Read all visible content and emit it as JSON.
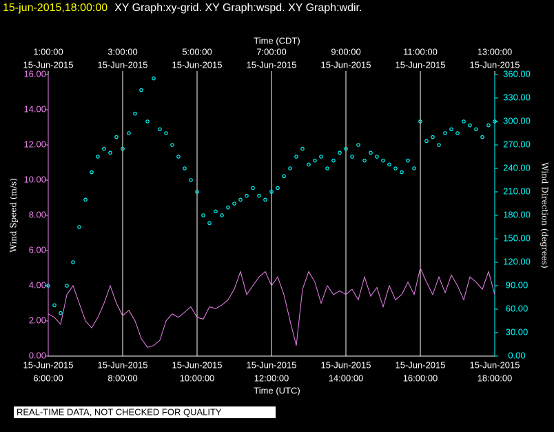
{
  "chart_data": {
    "type": "line",
    "timestamp": "15-jun-2015,18:00:00",
    "title": "XY Graph:xy-grid.  XY Graph:wspd.  XY Graph:wdir.",
    "note": "REAL-TIME DATA, NOT CHECKED FOR QUALITY",
    "xlabel": "Time (UTC)",
    "x2label": "Time (CDT)",
    "ylabel": "Wind Speed (m/s)",
    "y2label": "Wind Direction (degrees)",
    "grid": true,
    "x": [
      "2015-06-15 06:00",
      "2015-06-15 06:10",
      "2015-06-15 06:20",
      "2015-06-15 06:30",
      "2015-06-15 06:40",
      "2015-06-15 06:50",
      "2015-06-15 07:00",
      "2015-06-15 07:10",
      "2015-06-15 07:20",
      "2015-06-15 07:30",
      "2015-06-15 07:40",
      "2015-06-15 07:50",
      "2015-06-15 08:00",
      "2015-06-15 08:10",
      "2015-06-15 08:20",
      "2015-06-15 08:30",
      "2015-06-15 08:40",
      "2015-06-15 08:50",
      "2015-06-15 09:00",
      "2015-06-15 09:10",
      "2015-06-15 09:20",
      "2015-06-15 09:30",
      "2015-06-15 09:40",
      "2015-06-15 09:50",
      "2015-06-15 10:00",
      "2015-06-15 10:10",
      "2015-06-15 10:20",
      "2015-06-15 10:30",
      "2015-06-15 10:40",
      "2015-06-15 10:50",
      "2015-06-15 11:00",
      "2015-06-15 11:10",
      "2015-06-15 11:20",
      "2015-06-15 11:30",
      "2015-06-15 11:40",
      "2015-06-15 11:50",
      "2015-06-15 12:00",
      "2015-06-15 12:10",
      "2015-06-15 12:20",
      "2015-06-15 12:30",
      "2015-06-15 12:40",
      "2015-06-15 12:50",
      "2015-06-15 13:00",
      "2015-06-15 13:10",
      "2015-06-15 13:20",
      "2015-06-15 13:30",
      "2015-06-15 13:40",
      "2015-06-15 13:50",
      "2015-06-15 14:00",
      "2015-06-15 14:10",
      "2015-06-15 14:20",
      "2015-06-15 14:30",
      "2015-06-15 14:40",
      "2015-06-15 14:50",
      "2015-06-15 15:00",
      "2015-06-15 15:10",
      "2015-06-15 15:20",
      "2015-06-15 15:30",
      "2015-06-15 15:40",
      "2015-06-15 15:50",
      "2015-06-15 16:00",
      "2015-06-15 16:10",
      "2015-06-15 16:20",
      "2015-06-15 16:30",
      "2015-06-15 16:40",
      "2015-06-15 16:50",
      "2015-06-15 17:00",
      "2015-06-15 17:10",
      "2015-06-15 17:20",
      "2015-06-15 17:30",
      "2015-06-15 17:40",
      "2015-06-15 17:50",
      "2015-06-15 18:00"
    ],
    "xlim": [
      "2015-06-15 06:00",
      "2015-06-15 18:00"
    ],
    "xticks": [
      {
        "value": "2015-06-15 06:00",
        "label": [
          "15-Jun-2015",
          "6:00:00"
        ]
      },
      {
        "value": "2015-06-15 08:00",
        "label": [
          "15-Jun-2015",
          "8:00:00"
        ]
      },
      {
        "value": "2015-06-15 10:00",
        "label": [
          "15-Jun-2015",
          "10:00:00"
        ]
      },
      {
        "value": "2015-06-15 12:00",
        "label": [
          "15-Jun-2015",
          "12:00:00"
        ]
      },
      {
        "value": "2015-06-15 14:00",
        "label": [
          "15-Jun-2015",
          "14:00:00"
        ]
      },
      {
        "value": "2015-06-15 16:00",
        "label": [
          "15-Jun-2015",
          "16:00:00"
        ]
      },
      {
        "value": "2015-06-15 18:00",
        "label": [
          "15-Jun-2015",
          "18:00:00"
        ]
      }
    ],
    "x2ticks": [
      {
        "value": "2015-06-15 06:00",
        "label": [
          "1:00:00",
          "15-Jun-2015"
        ]
      },
      {
        "value": "2015-06-15 08:00",
        "label": [
          "3:00:00",
          "15-Jun-2015"
        ]
      },
      {
        "value": "2015-06-15 10:00",
        "label": [
          "5:00:00",
          "15-Jun-2015"
        ]
      },
      {
        "value": "2015-06-15 12:00",
        "label": [
          "7:00:00",
          "15-Jun-2015"
        ]
      },
      {
        "value": "2015-06-15 14:00",
        "label": [
          "9:00:00",
          "15-Jun-2015"
        ]
      },
      {
        "value": "2015-06-15 16:00",
        "label": [
          "11:00:00",
          "15-Jun-2015"
        ]
      },
      {
        "value": "2015-06-15 18:00",
        "label": [
          "13:00:00",
          "15-Jun-2015"
        ]
      }
    ],
    "ylim": [
      0,
      16
    ],
    "yticks": [
      {
        "value": 0,
        "label": "0.00"
      },
      {
        "value": 2,
        "label": "2.00"
      },
      {
        "value": 4,
        "label": "4.00"
      },
      {
        "value": 6,
        "label": "6.00"
      },
      {
        "value": 8,
        "label": "8.00"
      },
      {
        "value": 10,
        "label": "10.00"
      },
      {
        "value": 12,
        "label": "12.00"
      },
      {
        "value": 14,
        "label": "14.00"
      },
      {
        "value": 16,
        "label": "16.00"
      }
    ],
    "y2lim": [
      0,
      360
    ],
    "y2ticks": [
      {
        "value": 0,
        "label": "0.00"
      },
      {
        "value": 30,
        "label": "30.00"
      },
      {
        "value": 60,
        "label": "60.00"
      },
      {
        "value": 90,
        "label": "90.00"
      },
      {
        "value": 120,
        "label": "120.00"
      },
      {
        "value": 150,
        "label": "150.00"
      },
      {
        "value": 180,
        "label": "180.00"
      },
      {
        "value": 210,
        "label": "210.00"
      },
      {
        "value": 240,
        "label": "240.00"
      },
      {
        "value": 270,
        "label": "270.00"
      },
      {
        "value": 300,
        "label": "300.00"
      },
      {
        "value": 330,
        "label": "330.00"
      },
      {
        "value": 360,
        "label": "360.00"
      }
    ],
    "series": [
      {
        "name": "wspd",
        "color": "#ee82ee",
        "style": "line",
        "values": [
          2.4,
          2.2,
          1.8,
          3.5,
          4.0,
          3.0,
          2.0,
          1.6,
          2.2,
          3.0,
          4.0,
          3.0,
          2.3,
          2.6,
          2.0,
          1.0,
          0.5,
          0.6,
          0.9,
          2.0,
          2.4,
          2.2,
          2.5,
          2.8,
          2.2,
          2.1,
          2.8,
          2.7,
          2.9,
          3.2,
          3.8,
          4.8,
          3.5,
          4.0,
          4.5,
          4.8,
          4.0,
          4.5,
          3.5,
          2.0,
          0.6,
          3.8,
          4.8,
          4.2,
          3.0,
          4.0,
          3.5,
          3.7,
          3.5,
          3.8,
          3.2,
          4.5,
          3.4,
          3.9,
          2.8,
          4.0,
          3.2,
          3.5,
          4.2,
          3.5,
          5.0,
          4.2,
          3.5,
          4.5,
          3.6,
          4.6,
          4.0,
          3.2,
          4.5,
          4.2,
          3.8,
          4.8,
          3.5
        ]
      },
      {
        "name": "wdir",
        "color": "#00ffff",
        "style": "markers",
        "axis": "y2",
        "values": [
          90,
          65,
          55,
          90,
          120,
          165,
          200,
          235,
          255,
          265,
          260,
          280,
          265,
          285,
          310,
          340,
          300,
          355,
          290,
          285,
          270,
          255,
          240,
          225,
          210,
          180,
          170,
          185,
          180,
          190,
          195,
          200,
          205,
          215,
          205,
          200,
          210,
          215,
          230,
          240,
          255,
          265,
          245,
          250,
          255,
          240,
          250,
          260,
          265,
          255,
          270,
          250,
          260,
          255,
          250,
          245,
          240,
          235,
          250,
          240,
          300,
          275,
          280,
          270,
          285,
          290,
          285,
          300,
          295,
          290,
          280,
          295,
          300
        ]
      }
    ]
  }
}
